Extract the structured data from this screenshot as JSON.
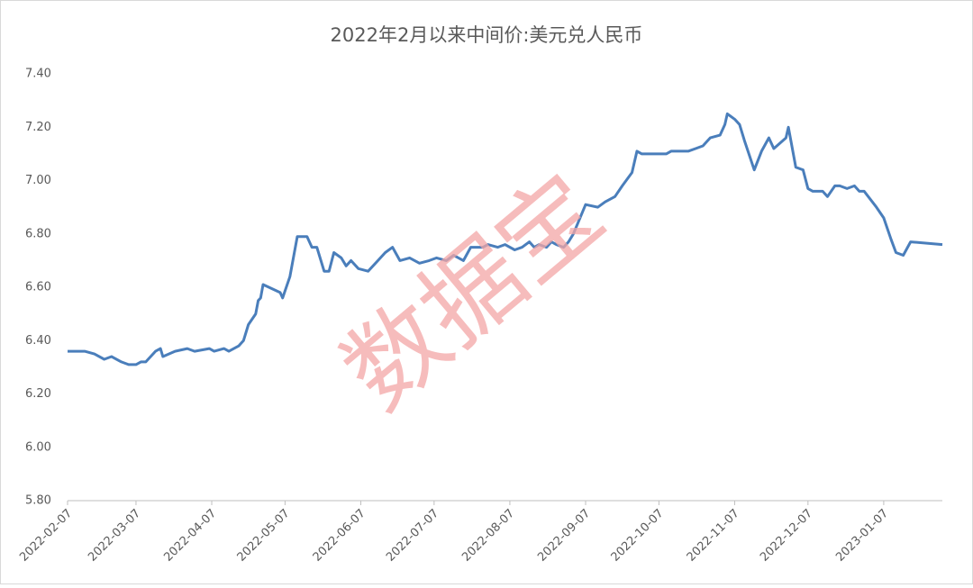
{
  "chart_data": {
    "type": "line",
    "title": "2022年2月以来中间价:美元兑人民币",
    "watermark": "数据宝",
    "x": [
      "2022-02-07",
      "2022-02-10",
      "2022-02-14",
      "2022-02-18",
      "2022-02-22",
      "2022-02-25",
      "2022-03-01",
      "2022-03-04",
      "2022-03-07",
      "2022-03-09",
      "2022-03-11",
      "2022-03-15",
      "2022-03-17",
      "2022-03-18",
      "2022-03-23",
      "2022-03-28",
      "2022-03-31",
      "2022-04-06",
      "2022-04-08",
      "2022-04-12",
      "2022-04-14",
      "2022-04-18",
      "2022-04-20",
      "2022-04-22",
      "2022-04-25",
      "2022-04-26",
      "2022-04-27",
      "2022-04-28",
      "2022-05-05",
      "2022-05-06",
      "2022-05-09",
      "2022-05-12",
      "2022-05-16",
      "2022-05-18",
      "2022-05-20",
      "2022-05-23",
      "2022-05-25",
      "2022-05-27",
      "2022-05-30",
      "2022-06-01",
      "2022-06-03",
      "2022-06-06",
      "2022-06-10",
      "2022-06-14",
      "2022-06-17",
      "2022-06-20",
      "2022-06-23",
      "2022-06-27",
      "2022-07-01",
      "2022-07-05",
      "2022-07-08",
      "2022-07-12",
      "2022-07-15",
      "2022-07-19",
      "2022-07-22",
      "2022-07-27",
      "2022-07-29",
      "2022-08-02",
      "2022-08-05",
      "2022-08-09",
      "2022-08-12",
      "2022-08-15",
      "2022-08-17",
      "2022-08-19",
      "2022-08-22",
      "2022-08-24",
      "2022-08-26",
      "2022-08-29",
      "2022-08-31",
      "2022-09-02",
      "2022-09-07",
      "2022-09-12",
      "2022-09-15",
      "2022-09-19",
      "2022-09-22",
      "2022-09-26",
      "2022-09-28",
      "2022-09-30",
      "2022-10-10",
      "2022-10-12",
      "2022-10-19",
      "2022-10-22",
      "2022-10-25",
      "2022-10-28",
      "2022-11-01",
      "2022-11-03",
      "2022-11-04",
      "2022-11-07",
      "2022-11-09",
      "2022-11-11",
      "2022-11-15",
      "2022-11-18",
      "2022-11-21",
      "2022-11-23",
      "2022-11-28",
      "2022-11-29",
      "2022-12-02",
      "2022-12-05",
      "2022-12-07",
      "2022-12-09",
      "2022-12-13",
      "2022-12-15",
      "2022-12-18",
      "2022-12-20",
      "2022-12-23",
      "2022-12-26",
      "2022-12-28",
      "2022-12-30",
      "2023-01-04",
      "2023-01-07",
      "2023-01-10",
      "2023-01-12",
      "2023-01-15",
      "2023-01-18",
      "2023-01-31"
    ],
    "series": [
      {
        "name": "美元兑人民币",
        "color": "#4a7ebb",
        "values": [
          6.36,
          6.36,
          6.36,
          6.35,
          6.33,
          6.34,
          6.32,
          6.31,
          6.31,
          6.32,
          6.32,
          6.36,
          6.37,
          6.34,
          6.36,
          6.37,
          6.36,
          6.37,
          6.36,
          6.37,
          6.36,
          6.38,
          6.4,
          6.46,
          6.5,
          6.55,
          6.56,
          6.61,
          6.58,
          6.56,
          6.64,
          6.79,
          6.79,
          6.75,
          6.75,
          6.66,
          6.66,
          6.73,
          6.71,
          6.68,
          6.7,
          6.67,
          6.66,
          6.7,
          6.73,
          6.75,
          6.7,
          6.71,
          6.69,
          6.7,
          6.71,
          6.7,
          6.72,
          6.7,
          6.75,
          6.75,
          6.76,
          6.75,
          6.76,
          6.74,
          6.75,
          6.77,
          6.75,
          6.76,
          6.75,
          6.77,
          6.76,
          6.75,
          6.77,
          6.8,
          6.91,
          6.9,
          6.92,
          6.94,
          6.98,
          7.03,
          7.11,
          7.1,
          7.1,
          7.11,
          7.11,
          7.12,
          7.13,
          7.16,
          7.17,
          7.21,
          7.25,
          7.23,
          7.21,
          7.15,
          7.04,
          7.11,
          7.16,
          7.12,
          7.16,
          7.2,
          7.05,
          7.04,
          6.97,
          6.96,
          6.96,
          6.94,
          6.98,
          6.98,
          6.97,
          6.98,
          6.96,
          6.96,
          6.9,
          6.86,
          6.78,
          6.73,
          6.72,
          6.77,
          6.76
        ]
      }
    ],
    "xlim": [
      "2022-02-07",
      "2023-01-31"
    ],
    "xticks": [
      "2022-02-07",
      "2022-03-07",
      "2022-04-07",
      "2022-05-07",
      "2022-06-07",
      "2022-07-07",
      "2022-08-07",
      "2022-09-07",
      "2022-10-07",
      "2022-11-07",
      "2022-12-07",
      "2023-01-07"
    ],
    "ylim": [
      5.8,
      7.4
    ],
    "yticks": [
      {
        "value": 5.8,
        "label": "5.80"
      },
      {
        "value": 6.0,
        "label": "6.00"
      },
      {
        "value": 6.2,
        "label": "6.20"
      },
      {
        "value": 6.4,
        "label": "6.40"
      },
      {
        "value": 6.6,
        "label": "6.60"
      },
      {
        "value": 6.8,
        "label": "6.80"
      },
      {
        "value": 7.0,
        "label": "7.00"
      },
      {
        "value": 7.2,
        "label": "7.20"
      },
      {
        "value": 7.4,
        "label": "7.40"
      }
    ],
    "grid": false
  }
}
